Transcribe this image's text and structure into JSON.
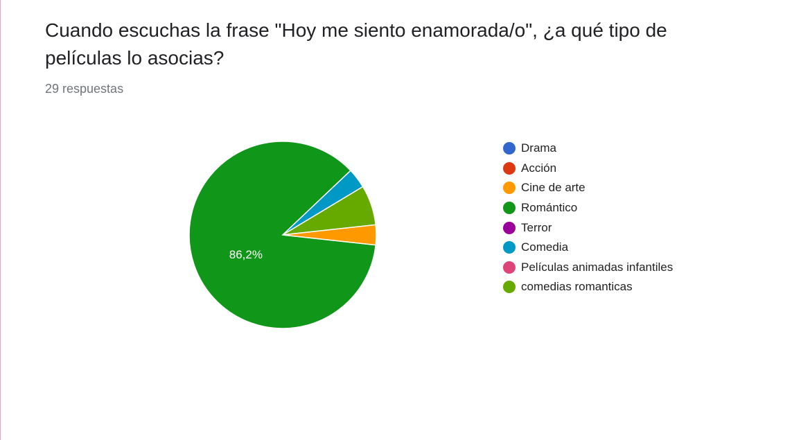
{
  "header": {
    "title": "Cuando escuchas la frase \"Hoy me siento enamorada/o\", ¿a qué tipo de películas lo asocias?",
    "responses": "29 respuestas"
  },
  "chart_data": {
    "type": "pie",
    "total_responses": 29,
    "categories": [
      "Drama",
      "Acción",
      "Cine de arte",
      "Romántico",
      "Terror",
      "Comedia",
      "Películas animadas infantiles",
      "comedias romanticas"
    ],
    "values": [
      0,
      0,
      1,
      25,
      0,
      1,
      0,
      2
    ],
    "colors": [
      "#3366cc",
      "#dc3912",
      "#ff9900",
      "#109618",
      "#990099",
      "#0099c6",
      "#dd4477",
      "#66aa00"
    ],
    "slice_labels": [
      {
        "category": "Romántico",
        "text": "86,2%"
      }
    ],
    "legend_position": "right"
  }
}
